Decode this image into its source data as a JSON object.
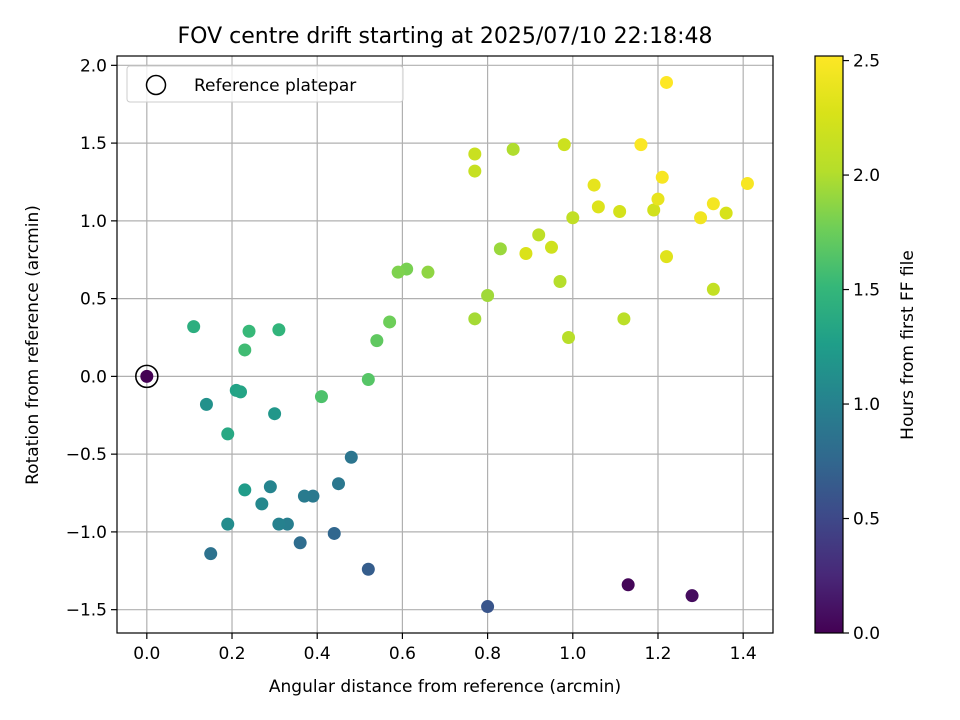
{
  "chart_data": {
    "type": "scatter",
    "title": "FOV centre drift starting at 2025/07/10 22:18:48",
    "xlabel": "Angular distance from reference (arcmin)",
    "ylabel": "Rotation from reference (arcmin)",
    "xlim": [
      -0.07,
      1.47
    ],
    "ylim": [
      -1.65,
      2.06
    ],
    "xticks": [
      0.0,
      0.2,
      0.4,
      0.6,
      0.8,
      1.0,
      1.2,
      1.4
    ],
    "xtick_labels": [
      "0.0",
      "0.2",
      "0.4",
      "0.6",
      "0.8",
      "1.0",
      "1.2",
      "1.4"
    ],
    "yticks": [
      -1.5,
      -1.0,
      -0.5,
      0.0,
      0.5,
      1.0,
      1.5,
      2.0
    ],
    "ytick_labels": [
      "−1.5",
      "−1.0",
      "−0.5",
      "0.0",
      "0.5",
      "1.0",
      "1.5",
      "2.0"
    ],
    "grid": true,
    "legend": {
      "placement": "top-left",
      "entries": [
        {
          "label": "Reference platepar",
          "marker": "open-circle"
        }
      ]
    },
    "reference_point": {
      "x": 0.0,
      "y": 0.0
    },
    "colorbar": {
      "label": "Hours from first FF file",
      "colormap": "viridis",
      "range": [
        0.0,
        2.52
      ],
      "ticks": [
        0.0,
        0.5,
        1.0,
        1.5,
        2.0,
        2.5
      ],
      "tick_labels": [
        "0.0",
        "0.5",
        "1.0",
        "1.5",
        "2.0",
        "2.5"
      ]
    },
    "points": [
      {
        "x": 0.0,
        "y": 0.0,
        "hours": 0.0
      },
      {
        "x": 1.13,
        "y": -1.34,
        "hours": 0.03
      },
      {
        "x": 1.28,
        "y": -1.41,
        "hours": 0.07
      },
      {
        "x": 0.8,
        "y": -1.48,
        "hours": 0.6
      },
      {
        "x": 0.52,
        "y": -1.24,
        "hours": 0.67
      },
      {
        "x": 0.44,
        "y": -1.01,
        "hours": 0.75
      },
      {
        "x": 0.36,
        "y": -1.07,
        "hours": 0.8
      },
      {
        "x": 0.15,
        "y": -1.14,
        "hours": 0.85
      },
      {
        "x": 0.48,
        "y": -0.52,
        "hours": 0.88
      },
      {
        "x": 0.45,
        "y": -0.69,
        "hours": 0.9
      },
      {
        "x": 0.39,
        "y": -0.77,
        "hours": 0.92
      },
      {
        "x": 0.37,
        "y": -0.77,
        "hours": 0.94
      },
      {
        "x": 0.33,
        "y": -0.95,
        "hours": 0.97
      },
      {
        "x": 0.31,
        "y": -0.95,
        "hours": 1.0
      },
      {
        "x": 0.29,
        "y": -0.71,
        "hours": 1.03
      },
      {
        "x": 0.27,
        "y": -0.82,
        "hours": 1.06
      },
      {
        "x": 0.19,
        "y": -0.95,
        "hours": 1.1
      },
      {
        "x": 0.14,
        "y": -0.18,
        "hours": 1.14
      },
      {
        "x": 0.3,
        "y": -0.24,
        "hours": 1.2
      },
      {
        "x": 0.23,
        "y": -0.73,
        "hours": 1.24
      },
      {
        "x": 0.21,
        "y": -0.09,
        "hours": 1.3
      },
      {
        "x": 0.22,
        "y": -0.1,
        "hours": 1.32
      },
      {
        "x": 0.19,
        "y": -0.37,
        "hours": 1.36
      },
      {
        "x": 0.11,
        "y": 0.32,
        "hours": 1.42
      },
      {
        "x": 0.31,
        "y": 0.3,
        "hours": 1.48
      },
      {
        "x": 0.24,
        "y": 0.29,
        "hours": 1.52
      },
      {
        "x": 0.23,
        "y": 0.17,
        "hours": 1.56
      },
      {
        "x": 0.41,
        "y": -0.13,
        "hours": 1.62
      },
      {
        "x": 0.52,
        "y": -0.02,
        "hours": 1.66
      },
      {
        "x": 0.54,
        "y": 0.23,
        "hours": 1.7
      },
      {
        "x": 0.57,
        "y": 0.35,
        "hours": 1.76
      },
      {
        "x": 0.61,
        "y": 0.69,
        "hours": 1.8
      },
      {
        "x": 0.59,
        "y": 0.67,
        "hours": 1.82
      },
      {
        "x": 0.66,
        "y": 0.67,
        "hours": 1.88
      },
      {
        "x": 0.83,
        "y": 0.82,
        "hours": 1.92
      },
      {
        "x": 0.8,
        "y": 0.52,
        "hours": 1.94
      },
      {
        "x": 0.77,
        "y": 0.37,
        "hours": 1.96
      },
      {
        "x": 0.86,
        "y": 1.46,
        "hours": 2.0
      },
      {
        "x": 0.97,
        "y": 0.61,
        "hours": 2.02
      },
      {
        "x": 0.99,
        "y": 0.25,
        "hours": 2.04
      },
      {
        "x": 1.12,
        "y": 0.37,
        "hours": 2.06
      },
      {
        "x": 0.92,
        "y": 0.91,
        "hours": 2.08
      },
      {
        "x": 1.0,
        "y": 1.02,
        "hours": 2.1
      },
      {
        "x": 1.33,
        "y": 0.56,
        "hours": 2.12
      },
      {
        "x": 0.77,
        "y": 1.32,
        "hours": 2.14
      },
      {
        "x": 0.77,
        "y": 1.43,
        "hours": 2.16
      },
      {
        "x": 0.98,
        "y": 1.49,
        "hours": 2.18
      },
      {
        "x": 0.95,
        "y": 0.83,
        "hours": 2.2
      },
      {
        "x": 1.19,
        "y": 1.07,
        "hours": 2.22
      },
      {
        "x": 1.11,
        "y": 1.06,
        "hours": 2.24
      },
      {
        "x": 1.36,
        "y": 1.05,
        "hours": 2.26
      },
      {
        "x": 0.89,
        "y": 0.79,
        "hours": 2.28
      },
      {
        "x": 1.06,
        "y": 1.09,
        "hours": 2.3
      },
      {
        "x": 1.22,
        "y": 0.77,
        "hours": 2.32
      },
      {
        "x": 1.05,
        "y": 1.23,
        "hours": 2.36
      },
      {
        "x": 1.2,
        "y": 1.14,
        "hours": 2.38
      },
      {
        "x": 1.3,
        "y": 1.02,
        "hours": 2.44
      },
      {
        "x": 1.33,
        "y": 1.11,
        "hours": 2.46
      },
      {
        "x": 1.21,
        "y": 1.28,
        "hours": 2.48
      },
      {
        "x": 1.41,
        "y": 1.24,
        "hours": 2.48
      },
      {
        "x": 1.16,
        "y": 1.49,
        "hours": 2.5
      },
      {
        "x": 1.22,
        "y": 1.89,
        "hours": 2.52
      }
    ]
  }
}
